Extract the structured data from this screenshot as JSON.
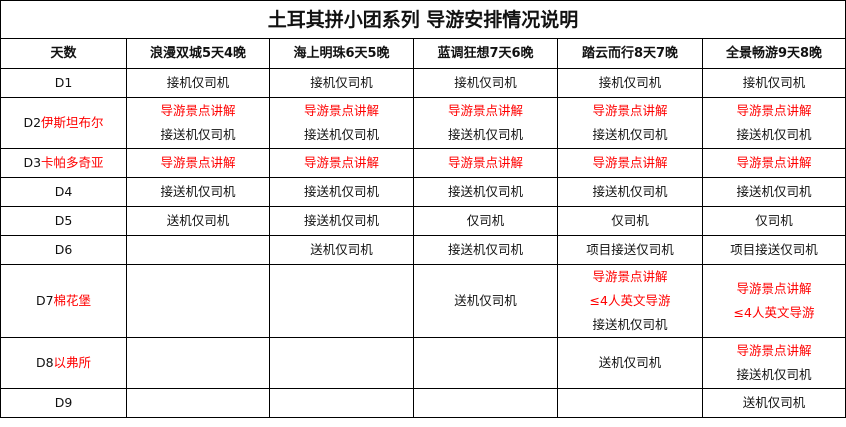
{
  "title": "土耳其拼小团系列 导游安排情况说明",
  "headers": [
    "天数",
    "浪漫双城5天4晚",
    "海上明珠6天5晚",
    "蓝调狂想7天6晚",
    "踏云而行8天7晚",
    "全景畅游9天8晚"
  ],
  "colors": {
    "highlight": "#ff0000",
    "text": "#111111",
    "border": "#000000"
  },
  "rows": [
    {
      "day": "D1",
      "city": "",
      "cells": [
        [
          {
            "t": "接机仅司机",
            "red": false
          }
        ],
        [
          {
            "t": "接机仅司机",
            "red": false
          }
        ],
        [
          {
            "t": "接机仅司机",
            "red": false
          }
        ],
        [
          {
            "t": "接机仅司机",
            "red": false
          }
        ],
        [
          {
            "t": "接机仅司机",
            "red": false
          }
        ]
      ]
    },
    {
      "day": "D2",
      "city": "伊斯坦布尔",
      "cells": [
        [
          {
            "t": "导游景点讲解",
            "red": true
          },
          {
            "t": "接送机仅司机",
            "red": false
          }
        ],
        [
          {
            "t": "导游景点讲解",
            "red": true
          },
          {
            "t": "接送机仅司机",
            "red": false
          }
        ],
        [
          {
            "t": "导游景点讲解",
            "red": true
          },
          {
            "t": "接送机仅司机",
            "red": false
          }
        ],
        [
          {
            "t": "导游景点讲解",
            "red": true
          },
          {
            "t": "接送机仅司机",
            "red": false
          }
        ],
        [
          {
            "t": "导游景点讲解",
            "red": true
          },
          {
            "t": "接送机仅司机",
            "red": false
          }
        ]
      ]
    },
    {
      "day": "D3",
      "city": "卡帕多奇亚",
      "cells": [
        [
          {
            "t": "导游景点讲解",
            "red": true
          }
        ],
        [
          {
            "t": "导游景点讲解",
            "red": true
          }
        ],
        [
          {
            "t": "导游景点讲解",
            "red": true
          }
        ],
        [
          {
            "t": "导游景点讲解",
            "red": true
          }
        ],
        [
          {
            "t": "导游景点讲解",
            "red": true
          }
        ]
      ]
    },
    {
      "day": "D4",
      "city": "",
      "cells": [
        [
          {
            "t": "接送机仅司机",
            "red": false
          }
        ],
        [
          {
            "t": "接送机仅司机",
            "red": false
          }
        ],
        [
          {
            "t": "接送机仅司机",
            "red": false
          }
        ],
        [
          {
            "t": "接送机仅司机",
            "red": false
          }
        ],
        [
          {
            "t": "接送机仅司机",
            "red": false
          }
        ]
      ]
    },
    {
      "day": "D5",
      "city": "",
      "cells": [
        [
          {
            "t": "送机仅司机",
            "red": false
          }
        ],
        [
          {
            "t": "接送机仅司机",
            "red": false
          }
        ],
        [
          {
            "t": "仅司机",
            "red": false
          }
        ],
        [
          {
            "t": "仅司机",
            "red": false
          }
        ],
        [
          {
            "t": "仅司机",
            "red": false
          }
        ]
      ]
    },
    {
      "day": "D6",
      "city": "",
      "cells": [
        [],
        [
          {
            "t": "送机仅司机",
            "red": false
          }
        ],
        [
          {
            "t": "接送机仅司机",
            "red": false
          }
        ],
        [
          {
            "t": "项目接送仅司机",
            "red": false
          }
        ],
        [
          {
            "t": "项目接送仅司机",
            "red": false
          }
        ]
      ]
    },
    {
      "day": "D7",
      "city": "棉花堡",
      "cells": [
        [],
        [],
        [
          {
            "t": "送机仅司机",
            "red": false
          }
        ],
        [
          {
            "t": "导游景点讲解",
            "red": true
          },
          {
            "t": "≤4人英文导游",
            "red": true
          },
          {
            "t": "接送机仅司机",
            "red": false
          }
        ],
        [
          {
            "t": "导游景点讲解",
            "red": true
          },
          {
            "t": "≤4人英文导游",
            "red": true
          }
        ]
      ]
    },
    {
      "day": "D8",
      "city": "以弗所",
      "cells": [
        [],
        [],
        [],
        [
          {
            "t": "送机仅司机",
            "red": false
          }
        ],
        [
          {
            "t": "导游景点讲解",
            "red": true
          },
          {
            "t": "接送机仅司机",
            "red": false
          }
        ]
      ]
    },
    {
      "day": "D9",
      "city": "",
      "cells": [
        [],
        [],
        [],
        [],
        [
          {
            "t": "送机仅司机",
            "red": false
          }
        ]
      ]
    }
  ]
}
